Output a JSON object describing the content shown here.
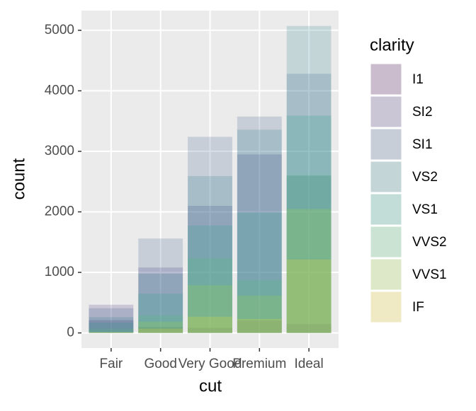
{
  "chart_data": {
    "type": "bar",
    "position": "identity",
    "alpha": 0.2,
    "x_label": "cut",
    "y_label": "count",
    "legend_title": "clarity",
    "legend_position": "right",
    "categories": [
      "Fair",
      "Good",
      "Very Good",
      "Premium",
      "Ideal"
    ],
    "series": [
      {
        "name": "I1",
        "color": "#440154",
        "values": [
          210,
          96,
          84,
          205,
          146
        ]
      },
      {
        "name": "SI2",
        "color": "#46337E",
        "values": [
          466,
          1081,
          2100,
          2949,
          2598
        ]
      },
      {
        "name": "SI1",
        "color": "#365C8D",
        "values": [
          408,
          1560,
          3240,
          3575,
          4282
        ]
      },
      {
        "name": "VS2",
        "color": "#277F8E",
        "values": [
          261,
          978,
          2591,
          3357,
          5071
        ]
      },
      {
        "name": "VS1",
        "color": "#1FA187",
        "values": [
          170,
          648,
          1775,
          1989,
          3589
        ]
      },
      {
        "name": "VVS2",
        "color": "#4AC16D",
        "values": [
          69,
          286,
          1235,
          870,
          2606
        ]
      },
      {
        "name": "VVS1",
        "color": "#9FDA3A",
        "values": [
          17,
          186,
          789,
          616,
          2047
        ]
      },
      {
        "name": "IF",
        "color": "#FDE725",
        "values": [
          9,
          71,
          268,
          230,
          1212
        ]
      }
    ],
    "ylim": [
      -250,
      5325
    ],
    "yticks": [
      0,
      1000,
      2000,
      3000,
      4000,
      5000
    ],
    "grid": true
  }
}
